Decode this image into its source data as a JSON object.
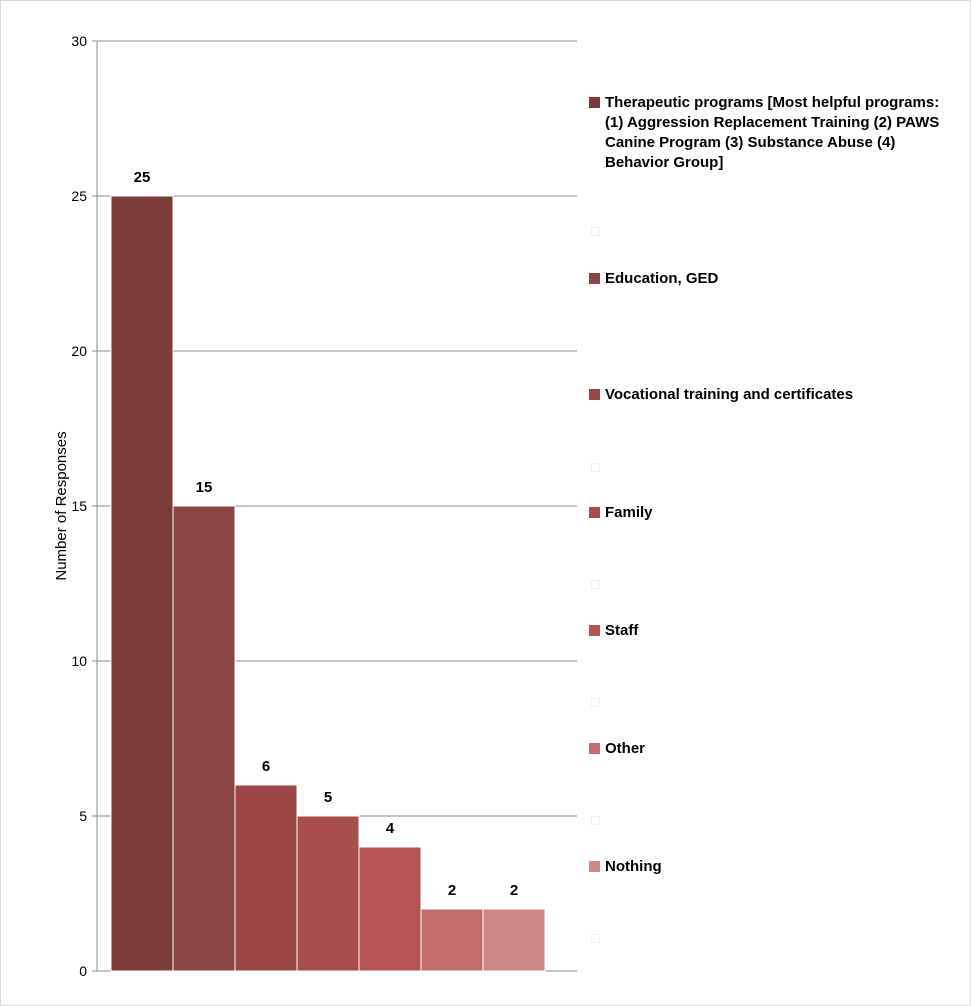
{
  "chart_data": {
    "type": "bar",
    "ylabel": "Number of Responses",
    "ylim": [
      0,
      30
    ],
    "yticks": [
      0,
      5,
      10,
      15,
      20,
      25,
      30
    ],
    "grid": true,
    "legend_position": "right",
    "categories": [
      "Therapeutic programs [Most helpful programs: (1) Aggression Replacement Training (2) PAWS Canine Program (3) Substance Abuse (4) Behavior Group]",
      "Education, GED",
      "Vocational training and certificates",
      "Family",
      "Staff",
      "Other",
      "Nothing"
    ],
    "values": [
      25,
      15,
      6,
      5,
      4,
      2,
      2
    ],
    "colors": [
      "#7b3b37",
      "#8b4441",
      "#9b4745",
      "#a74d4b",
      "#b55450",
      "#c26d6c",
      "#cf8886"
    ]
  }
}
